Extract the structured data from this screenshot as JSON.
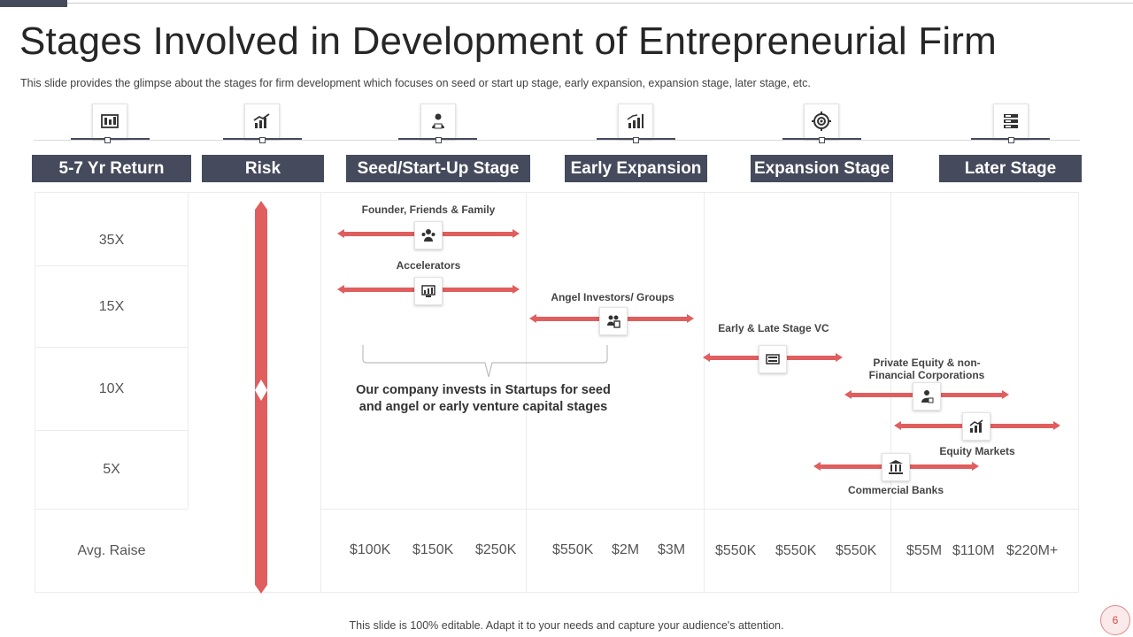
{
  "slide": {
    "title": "Stages Involved in Development of Entrepreneurial Firm",
    "subtitle": "This slide provides the glimpse about the stages for firm development which focuses on seed or start up stage, early expansion, expansion stage, later stage, etc.",
    "footer": "This slide is 100% editable. Adapt it to your needs and capture your audience's attention.",
    "page_number": "6"
  },
  "headers": [
    {
      "label": "5-7 Yr Return",
      "icon": "money-icon"
    },
    {
      "label": "Risk",
      "icon": "risk-chart-icon"
    },
    {
      "label": "Seed/Start-Up Stage",
      "icon": "startup-person-icon"
    },
    {
      "label": "Early Expansion",
      "icon": "growth-bars-icon"
    },
    {
      "label": "Expansion Stage",
      "icon": "target-gear-icon"
    },
    {
      "label": "Later Stage",
      "icon": "server-stack-icon"
    }
  ],
  "returns": [
    "35X",
    "15X",
    "10X",
    "5X"
  ],
  "avg_raise_label": "Avg. Raise",
  "raises": [
    "$100K",
    "$150K",
    "$250K",
    "$550K",
    "$2M",
    "$3M",
    "$550K",
    "$550K",
    "$550K",
    "$55M",
    "$110M",
    "$220M+"
  ],
  "funding_sources": [
    {
      "label": "Founder, Friends & Family",
      "icon": "family-icon"
    },
    {
      "label": "Accelerators",
      "icon": "accelerator-icon"
    },
    {
      "label": "Angel Investors/ Groups",
      "icon": "angel-investor-icon"
    },
    {
      "label": "Early & Late Stage VC",
      "icon": "vc-money-icon"
    },
    {
      "label": "Private Equity & non-Financial Corporations",
      "label_line1": "Private Equity & non-",
      "label_line2": "Financial Corporations",
      "icon": "private-equity-icon"
    },
    {
      "label": "Equity Markets",
      "icon": "equity-chart-icon"
    },
    {
      "label": "Commercial Banks",
      "icon": "bank-icon"
    }
  ],
  "note": {
    "line1": "Our company invests in Startups for seed",
    "line2": "and angel or early venture capital stages"
  },
  "colors": {
    "header_bg": "#454a5c",
    "accent_red": "#e05e5e"
  }
}
